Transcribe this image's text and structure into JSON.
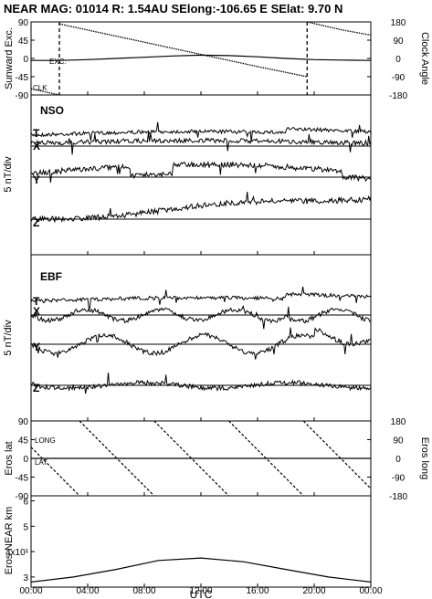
{
  "header": {
    "title": "NEAR MAG: 01014  R: 1.54AU  SElong:-106.65 E  SElat:    9.70 N"
  },
  "chart_data": [
    {
      "type": "line",
      "panel": "sunward",
      "ylabel_left": "Sunward Exc.",
      "ylabel_right": "Clock Angle",
      "left_ticks": [
        "90",
        "45",
        "0",
        "-45",
        "-90"
      ],
      "right_ticks": [
        "180",
        "90",
        "0",
        "-90",
        "-180"
      ],
      "ylim_left": [
        -90,
        90
      ],
      "ylim_right": [
        -180,
        180
      ],
      "curve_labels": [
        "EXC.",
        "CLK"
      ],
      "x_hours": [
        0,
        2,
        2.01,
        4,
        8,
        12,
        16,
        19.5,
        19.51,
        22,
        24
      ],
      "clock_angle_deg": [
        -150,
        -180,
        170,
        140,
        80,
        20,
        -40,
        -90,
        180,
        140,
        115
      ],
      "exc_x_hours": [
        0,
        2,
        4,
        6,
        8,
        10,
        12,
        14,
        16,
        18,
        20,
        22,
        24
      ],
      "excursion_deg": [
        -5,
        -5,
        -3,
        0,
        3,
        6,
        8,
        7,
        4,
        0,
        -3,
        -4,
        -5
      ],
      "dashed_lines_hours": [
        2.0,
        19.5
      ]
    },
    {
      "type": "line",
      "panel": "NSO",
      "label": "NSO",
      "ylabel": "5 nT/div",
      "component_labels": [
        "T",
        "X",
        "Y",
        "Z"
      ]
    },
    {
      "type": "line",
      "panel": "EBF",
      "label": "EBF",
      "ylabel": "5 nT/div",
      "component_labels": [
        "T",
        "X",
        "Y",
        "Z"
      ]
    },
    {
      "type": "line",
      "panel": "eros",
      "ylabel_left": "Eros lat",
      "ylabel_right": "Eros long",
      "left_ticks": [
        "90",
        "45",
        "0",
        "-45",
        "-90"
      ],
      "right_ticks": [
        "180",
        "90",
        "0",
        "-90",
        "-180"
      ],
      "curve_labels": [
        "LONG",
        "LAT"
      ],
      "ylim_left": [
        -90,
        90
      ],
      "ylim_right": [
        -180,
        180
      ],
      "longitude_period_hours": 5.27,
      "latitude_deg_start": 0,
      "latitude_deg_end": 0
    },
    {
      "type": "line",
      "panel": "distance",
      "ylabel": "Eros-NEAR km",
      "y_ticks": [
        "6",
        "5",
        "4x10¹",
        "3"
      ],
      "x_hours": [
        0,
        3,
        6,
        9,
        12,
        15,
        18,
        21,
        24
      ],
      "distance_km": [
        28,
        30,
        33,
        36.5,
        37.5,
        36,
        33,
        30,
        28
      ]
    }
  ],
  "xaxis": {
    "tick_labels": [
      "00:00",
      "04:00",
      "08:00",
      "12:00",
      "16:00",
      "20:00",
      "00:00"
    ],
    "label": "UTC"
  }
}
